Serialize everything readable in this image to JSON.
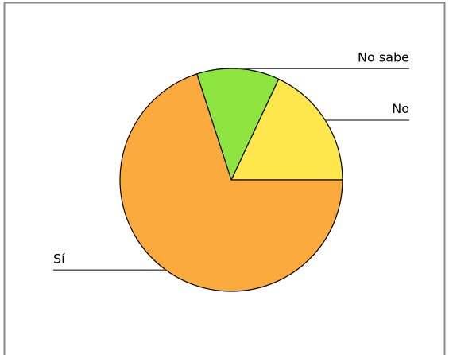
{
  "chart_data": {
    "type": "pie",
    "categories": [
      "No",
      "No sabe",
      "Sí"
    ],
    "values": [
      18,
      12,
      70
    ],
    "colors": [
      "#fde74c",
      "#8ee53f",
      "#fbab3d"
    ]
  }
}
